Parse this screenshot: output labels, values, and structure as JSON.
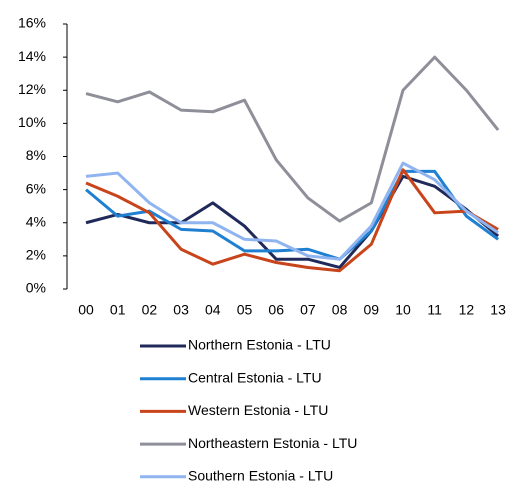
{
  "chart_data": {
    "type": "line",
    "categories": [
      "00",
      "01",
      "02",
      "03",
      "04",
      "05",
      "06",
      "07",
      "08",
      "09",
      "10",
      "11",
      "12",
      "13"
    ],
    "series": [
      {
        "name": "Northern Estonia - LTU",
        "color": "#1f2a5a",
        "values": [
          4.0,
          4.5,
          4.0,
          4.0,
          5.2,
          3.8,
          1.8,
          1.8,
          1.3,
          3.5,
          6.8,
          6.2,
          4.8,
          3.2
        ]
      },
      {
        "name": "Central Estonia - LTU",
        "color": "#1f7fd0",
        "values": [
          6.0,
          4.4,
          4.7,
          3.6,
          3.5,
          2.3,
          2.3,
          2.4,
          1.8,
          3.5,
          7.1,
          7.1,
          4.4,
          3.0
        ]
      },
      {
        "name": "Western Estonia - LTU",
        "color": "#c8441a",
        "values": [
          6.4,
          5.6,
          4.6,
          2.4,
          1.5,
          2.1,
          1.6,
          1.3,
          1.1,
          2.7,
          7.2,
          4.6,
          4.7,
          3.6
        ]
      },
      {
        "name": "Northeastern Estonia - LTU",
        "color": "#8e8f99",
        "values": [
          11.8,
          11.3,
          11.9,
          10.8,
          10.7,
          11.4,
          7.8,
          5.5,
          4.1,
          5.2,
          12.0,
          14.0,
          12.0,
          9.6
        ]
      },
      {
        "name": "Southern Estonia - LTU",
        "color": "#8fb4f0",
        "values": [
          6.8,
          7.0,
          5.2,
          4.0,
          4.0,
          3.0,
          2.9,
          2.0,
          1.8,
          3.8,
          7.6,
          6.6,
          4.7,
          3.4
        ]
      }
    ],
    "ylim": [
      0,
      16
    ],
    "yticks": [
      {
        "value": 0,
        "label": "0%"
      },
      {
        "value": 2,
        "label": "2%"
      },
      {
        "value": 4,
        "label": "4%"
      },
      {
        "value": 6,
        "label": "6%"
      },
      {
        "value": 8,
        "label": "8%"
      },
      {
        "value": 10,
        "label": "10%"
      },
      {
        "value": 12,
        "label": "12%"
      },
      {
        "value": 14,
        "label": "14%"
      },
      {
        "value": 16,
        "label": "16%"
      }
    ],
    "grid": false
  }
}
